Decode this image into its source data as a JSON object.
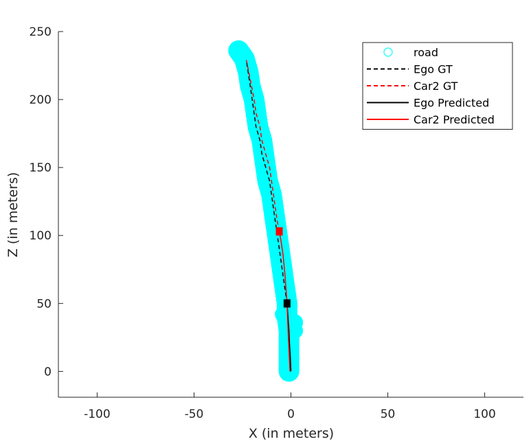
{
  "chart_data": {
    "type": "line",
    "title": "",
    "xlabel": "X (in meters)",
    "ylabel": "Z (in meters)",
    "xlim": [
      -120,
      120
    ],
    "ylim": [
      -19,
      250
    ],
    "xticks": [
      -100,
      -50,
      0,
      50,
      100
    ],
    "yticks": [
      0,
      50,
      100,
      150,
      200,
      250
    ],
    "grid": false,
    "legend_placement": "top-right",
    "road": {
      "name": "road",
      "color": "#00ffff",
      "centerline": [
        [
          -1,
          0
        ],
        [
          -1,
          10
        ],
        [
          -1,
          20
        ],
        [
          -1,
          30
        ],
        [
          -2,
          40
        ],
        [
          -2,
          50
        ],
        [
          -3,
          60
        ],
        [
          -4,
          70
        ],
        [
          -5,
          80
        ],
        [
          -6,
          90
        ],
        [
          -7,
          100
        ],
        [
          -8,
          110
        ],
        [
          -9,
          120
        ],
        [
          -10,
          130
        ],
        [
          -12,
          140
        ],
        [
          -13,
          150
        ],
        [
          -14,
          160
        ],
        [
          -15,
          170
        ],
        [
          -17,
          180
        ],
        [
          -18,
          190
        ],
        [
          -19,
          200
        ],
        [
          -21,
          210
        ],
        [
          -22,
          220
        ],
        [
          -24,
          230
        ],
        [
          -27,
          236
        ]
      ],
      "blobs": [
        [
          -4,
          42
        ],
        [
          2,
          30
        ],
        [
          2,
          36
        ]
      ]
    },
    "series": [
      {
        "name": "Ego GT",
        "color": "#000000",
        "dash": "dashed",
        "x": [
          -2,
          -3,
          -4,
          -5,
          -6,
          -7,
          -8,
          -9,
          -10,
          -11,
          -13,
          -15,
          -16,
          -18,
          -19,
          -21,
          -23
        ],
        "y": [
          50,
          60,
          70,
          80,
          90,
          100,
          110,
          120,
          130,
          140,
          150,
          160,
          170,
          180,
          190,
          210,
          229
        ]
      },
      {
        "name": "Car2 GT",
        "color": "#ff0000",
        "dash": "dashed",
        "x": [
          -6,
          -7,
          -8,
          -9,
          -10,
          -11,
          -13,
          -15,
          -16,
          -18,
          -19,
          -21,
          -23
        ],
        "y": [
          103,
          110,
          120,
          130,
          140,
          150,
          160,
          170,
          180,
          190,
          200,
          215,
          229
        ]
      },
      {
        "name": "Ego Predicted",
        "color": "#000000",
        "dash": "solid",
        "x": [
          0,
          -0.3,
          -0.7,
          -1,
          -1.5,
          -2
        ],
        "y": [
          0,
          10,
          20,
          30,
          40,
          50
        ]
      },
      {
        "name": "Car2 Predicted",
        "color": "#ff0000",
        "dash": "solid",
        "x": [
          -0.5,
          -1,
          -1.5,
          -2,
          -3,
          -4,
          -5,
          -6
        ],
        "y": [
          0,
          15,
          30,
          50,
          70,
          85,
          95,
          103
        ]
      }
    ],
    "markers": [
      {
        "name": "ego-current-position-marker",
        "x": -2,
        "y": 50,
        "color": "#000000"
      },
      {
        "name": "car2-current-position-marker",
        "x": -6,
        "y": 103,
        "color": "#ff0000"
      }
    ]
  }
}
